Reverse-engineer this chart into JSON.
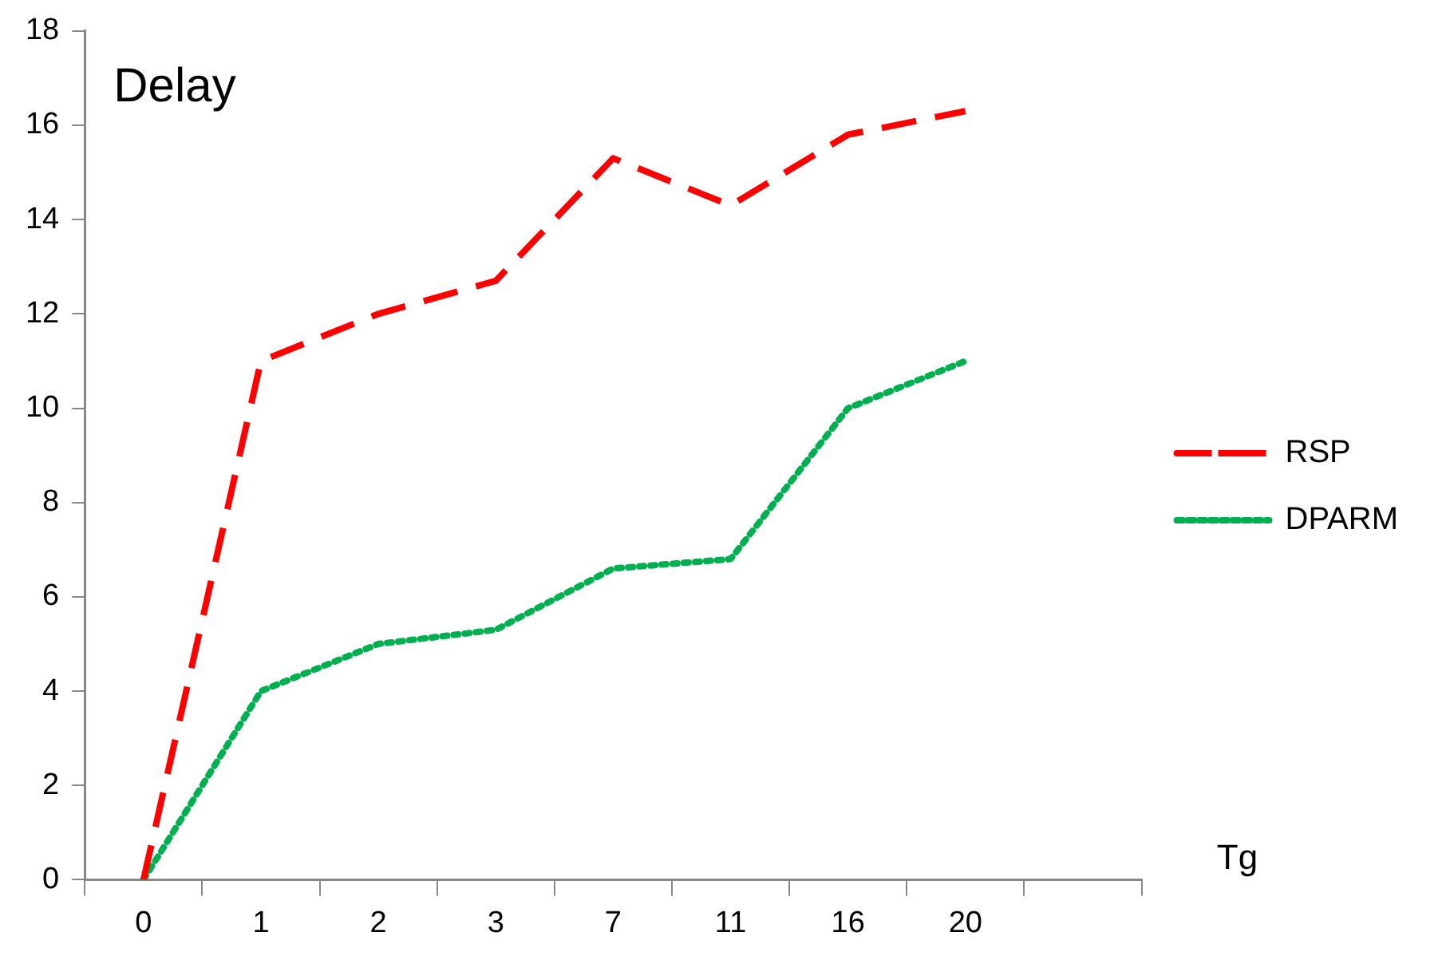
{
  "chart_data": {
    "type": "line",
    "title": "Delay",
    "xlabel": "Tg",
    "categories": [
      "0",
      "1",
      "2",
      "3",
      "7",
      "11",
      "16",
      "20",
      null
    ],
    "series": [
      {
        "name": "RSP",
        "color": "#ff0000",
        "line_style": "dashed",
        "values": [
          0,
          11,
          12,
          12.7,
          15.3,
          14.3,
          15.8,
          16.3,
          null
        ]
      },
      {
        "name": "DPARM",
        "color": "#00b050",
        "line_style": "dotted",
        "values": [
          0,
          4,
          5,
          5.3,
          6.6,
          6.8,
          10,
          11,
          null
        ]
      }
    ],
    "ylim": [
      0,
      18
    ],
    "yticks": [
      0,
      2,
      4,
      6,
      8,
      10,
      12,
      14,
      16,
      18
    ],
    "grid": false,
    "legend": "right",
    "marker": "none"
  }
}
